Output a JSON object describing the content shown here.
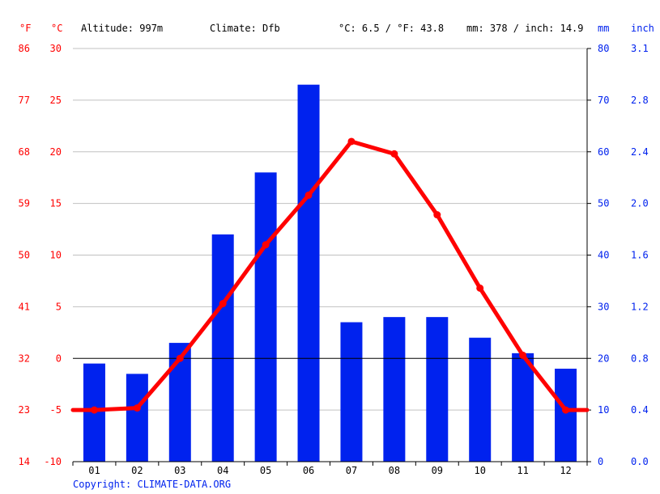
{
  "header": {
    "unit_f": "°F",
    "unit_c": "°C",
    "altitude": "Altitude: 997m",
    "climate": "Climate: Dfb",
    "avg_temp": "°C: 6.5 / °F: 43.8",
    "precip_total": "mm: 378 / inch: 14.9",
    "unit_mm": "mm",
    "unit_inch": "inch"
  },
  "copyright": "Copyright: CLIMATE-DATA.ORG",
  "colors": {
    "temp_line": "#ff0000",
    "precip_bar": "#0022ee",
    "grid": "#c0c0c0",
    "zero_line": "#000000"
  },
  "chart_data": {
    "type": "bar",
    "categories": [
      "01",
      "02",
      "03",
      "04",
      "05",
      "06",
      "07",
      "08",
      "09",
      "10",
      "11",
      "12"
    ],
    "series": [
      {
        "type": "bar",
        "axis": "right",
        "values": [
          19,
          17,
          23,
          44,
          56,
          73,
          27,
          28,
          28,
          24,
          21,
          18
        ]
      },
      {
        "type": "line",
        "axis": "left",
        "values": [
          -5.0,
          -4.8,
          0.0,
          5.3,
          11.0,
          15.8,
          21.0,
          19.8,
          13.9,
          6.8,
          0.3,
          -5.0
        ]
      }
    ],
    "left_axis_c": {
      "ticks": [
        30,
        25,
        20,
        15,
        10,
        5,
        0,
        -5,
        -10
      ],
      "range": [
        -10,
        30
      ]
    },
    "left_axis_f": {
      "ticks": [
        "86",
        "77",
        "68",
        "59",
        "50",
        "41",
        "32",
        "23",
        "14"
      ]
    },
    "right_axis_mm": {
      "ticks": [
        80,
        70,
        60,
        50,
        40,
        30,
        20,
        10,
        0
      ],
      "range": [
        0,
        80
      ]
    },
    "right_axis_inch": {
      "ticks": [
        "3.1",
        "2.8",
        "2.4",
        "2.0",
        "1.6",
        "1.2",
        "0.8",
        "0.4",
        "0.0"
      ]
    },
    "grid": true
  }
}
